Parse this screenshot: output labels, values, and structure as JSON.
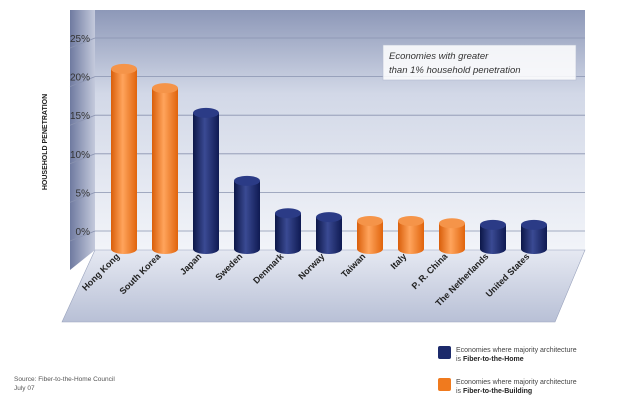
{
  "chart_data": {
    "type": "bar",
    "title": "",
    "xlabel": "",
    "ylabel": "HOUSEHOLD PENETRATION",
    "ylim": [
      0,
      25
    ],
    "yticks": [
      "25%",
      "20%",
      "15%",
      "10%",
      "5%",
      "0%"
    ],
    "grid": true,
    "categories": [
      "Hong Kong",
      "South Korea",
      "Japan",
      "Sweden",
      "Denmark",
      "Norway",
      "Taiwan",
      "Italy",
      "P. R. China",
      "The Netherlands",
      "United States"
    ],
    "values": [
      21,
      18.5,
      15.3,
      6.5,
      2.3,
      1.8,
      1.3,
      1.3,
      1.0,
      0.8,
      0.8
    ],
    "architecture": [
      "building",
      "building",
      "home",
      "home",
      "home",
      "home",
      "building",
      "building",
      "building",
      "home",
      "home"
    ],
    "annotation": {
      "line1": "Economies with greater",
      "line2": "than 1% household penetration"
    },
    "colors": {
      "home": "#1c2a6b",
      "building": "#f07a1e",
      "plot_bg": "#d9dfec"
    }
  },
  "legend": {
    "home": {
      "line1": "Economies where majority architecture",
      "prefix": "is ",
      "bold": "Fiber-to-the-Home"
    },
    "building": {
      "line1": "Economies where majority architecture",
      "prefix": "is ",
      "bold": "Fiber-to-the-Building"
    }
  },
  "source": {
    "line1": "Source: Fiber-to-the-Home Council",
    "line2": "July 07"
  }
}
